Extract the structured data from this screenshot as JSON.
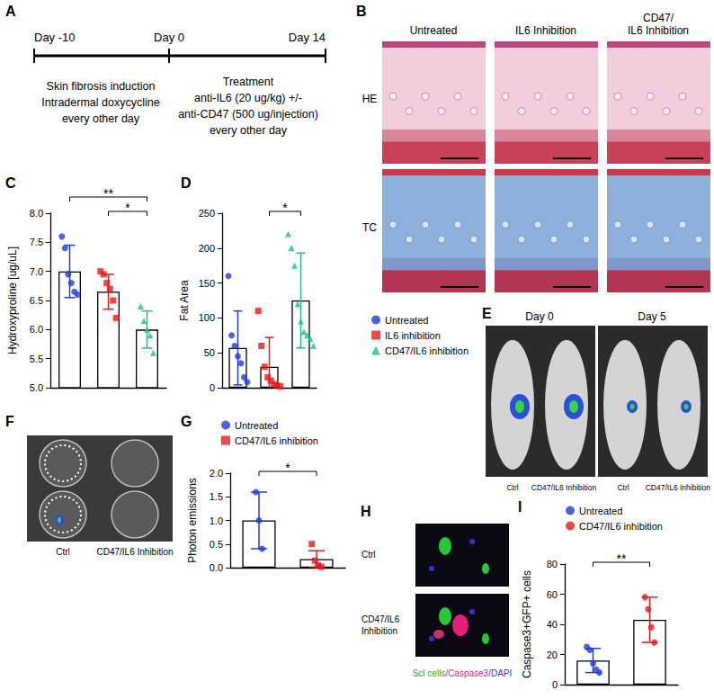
{
  "chart_data": [
    {
      "panel": "C",
      "type": "bar",
      "y_label": "Hydroxyproline [ug/uL]",
      "categories": [
        null,
        null,
        null
      ],
      "values": [
        7.0,
        6.65,
        6.0
      ],
      "errors": [
        0.45,
        0.3,
        0.32
      ],
      "series": [
        {
          "color": "#1f3bdb",
          "marker": "circle",
          "points": [
            7.6,
            7.4,
            6.95,
            6.8,
            6.65,
            6.6
          ]
        },
        {
          "color": "#e31a1c",
          "marker": "square",
          "points": [
            7.0,
            6.95,
            6.8,
            6.7,
            6.5,
            6.2
          ]
        },
        {
          "color": "#19c08f",
          "marker": "triangle",
          "points": [
            6.4,
            6.15,
            6.0,
            5.9,
            5.6
          ]
        }
      ],
      "ylim": [
        5,
        8
      ],
      "yticks": [
        {
          "value": 5,
          "label": "5.0"
        },
        {
          "value": 5.5,
          "label": "5.5"
        },
        {
          "value": 6,
          "label": "6.0"
        },
        {
          "value": 6.5,
          "label": "6.5"
        },
        {
          "value": 7,
          "label": "7.0"
        },
        {
          "value": 7.5,
          "label": "7.5"
        },
        {
          "value": 8,
          "label": "8.0"
        }
      ],
      "significance": [
        {
          "from": 0,
          "to": 2,
          "label": "**"
        },
        {
          "from": 1,
          "to": 2,
          "label": "*"
        }
      ],
      "grid": false,
      "tick_labels": "y"
    },
    {
      "panel": "D",
      "type": "bar",
      "y_label": "Fat Area",
      "categories": [
        null,
        null,
        null
      ],
      "values": [
        57,
        30,
        125
      ],
      "errors": [
        53,
        42,
        68
      ],
      "series": [
        {
          "name": "Untreated",
          "color": "#1f3bdb",
          "marker": "circle",
          "points": [
            160,
            75,
            60,
            45,
            35,
            15,
            8
          ]
        },
        {
          "name": "IL6 inhibition",
          "color": "#e31a1c",
          "marker": "square",
          "points": [
            110,
            60,
            30,
            15,
            10,
            5,
            3,
            2
          ]
        },
        {
          "name": "CD47/IL6 inhibition",
          "color": "#19c08f",
          "marker": "triangle",
          "points": [
            220,
            200,
            175,
            120,
            95,
            80,
            75,
            70,
            60
          ]
        }
      ],
      "ylim": [
        0,
        250
      ],
      "yticks": [
        0,
        50,
        100,
        150,
        200,
        250
      ],
      "significance": [
        {
          "from": 1,
          "to": 2,
          "label": "*"
        }
      ],
      "grid": false,
      "tick_labels": "y",
      "legend": "right"
    },
    {
      "panel": "G",
      "type": "bar",
      "y_label": "Photon emissions",
      "categories": [
        null,
        null
      ],
      "values": [
        1.0,
        0.18
      ],
      "errors": [
        0.6,
        0.18
      ],
      "series": [
        {
          "name": "Untreated",
          "color": "#1f3bdb",
          "marker": "circle",
          "points": [
            1.6,
            1.0,
            0.4
          ]
        },
        {
          "name": "CD47/IL6 inhibition",
          "color": "#e31a1c",
          "marker": "square",
          "points": [
            0.5,
            0.15,
            0.05,
            0.02
          ]
        }
      ],
      "ylim": [
        0,
        2
      ],
      "yticks": [
        {
          "value": 0,
          "label": "0.0"
        },
        {
          "value": 0.5,
          "label": "0.5"
        },
        {
          "value": 1,
          "label": "1.0"
        },
        {
          "value": 1.5,
          "label": "1.5"
        },
        {
          "value": 2,
          "label": "2.0"
        }
      ],
      "significance": [
        {
          "from": 0,
          "to": 1,
          "label": "*"
        }
      ],
      "grid": false,
      "tick_labels": "y",
      "legend": "top"
    },
    {
      "panel": "I",
      "type": "bar",
      "y_label": "Caspase3+GFP+ cells",
      "categories": [
        null,
        null
      ],
      "values": [
        16,
        43
      ],
      "errors": [
        8,
        15
      ],
      "series": [
        {
          "name": "Untreated",
          "color": "#1f3bdb",
          "marker": "circle",
          "points": [
            25,
            23,
            14,
            10,
            8
          ]
        },
        {
          "name": "CD47/IL6 inhibition",
          "color": "#e31a1c",
          "marker": "circle",
          "points": [
            58,
            50,
            38,
            28
          ]
        }
      ],
      "ylim": [
        0,
        80
      ],
      "yticks": [
        0,
        20,
        40,
        60,
        80
      ],
      "significance": [
        {
          "from": 0,
          "to": 1,
          "label": "**"
        }
      ],
      "grid": false,
      "tick_labels": "y",
      "legend": "top"
    }
  ],
  "figure": {
    "A": {
      "letter": "A",
      "days": [
        "Day -10",
        "Day 0",
        "Day 14"
      ],
      "phase1": [
        "Skin fibrosis induction",
        "Intradermal doxycycline",
        "every other day"
      ],
      "phase2": [
        "Treatment",
        "anti-IL6 (20 ug/kg) +/-",
        "anti-CD47 (500 ug/injection)",
        "every other day"
      ]
    },
    "B": {
      "letter": "B",
      "columns": [
        [
          "Untreated"
        ],
        [
          "IL6 Inhibition"
        ],
        [
          "CD47/",
          "IL6 Inhibition"
        ]
      ],
      "rows": [
        "HE",
        "TC"
      ]
    },
    "E": {
      "letter": "E",
      "days": [
        "Day 0",
        "Day 5"
      ],
      "groups": [
        "Ctrl",
        "CD47/IL6 Inhibition"
      ]
    },
    "F": {
      "letter": "F",
      "groups": [
        "Ctrl",
        "CD47/IL6 Inhibition"
      ]
    },
    "H": {
      "letter": "H",
      "rows": [
        [
          "Ctrl"
        ],
        [
          "CD47/IL6",
          "Inhibition"
        ]
      ],
      "caption": [
        {
          "text": "Scl cells",
          "color": "#22b022"
        },
        {
          "text": "/Caspase3",
          "color": "#d81e78"
        },
        {
          "text": "/DAPI",
          "color": "#3333cc"
        }
      ]
    }
  }
}
